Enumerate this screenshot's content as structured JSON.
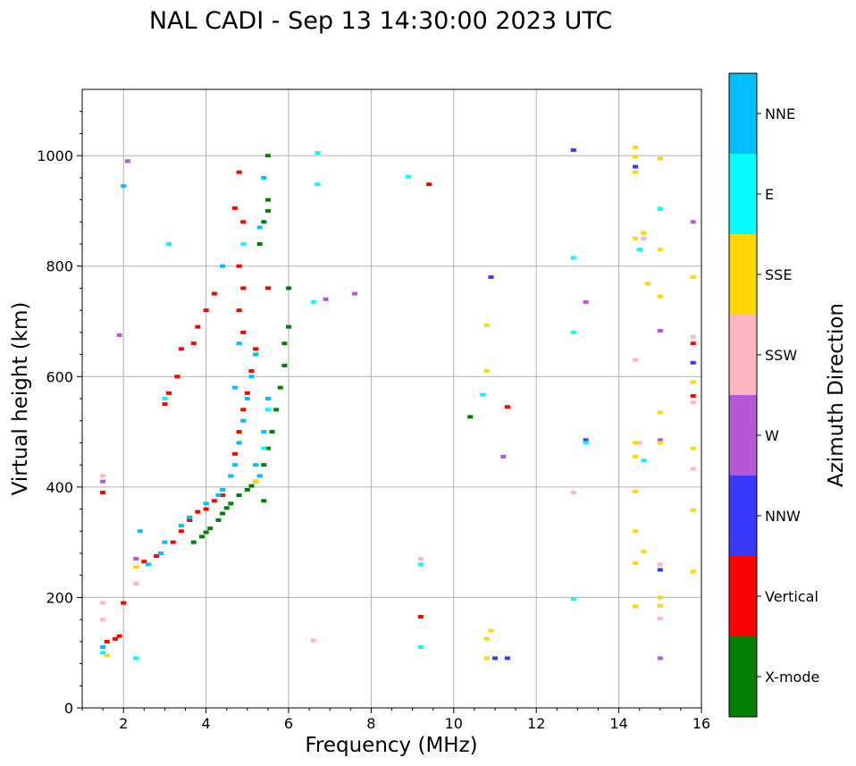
{
  "chart_data": {
    "type": "scatter",
    "title": "NAL CADI - Sep 13 14:30:00 2023 UTC",
    "xlabel": "Frequency (MHz)",
    "ylabel": "Virtual height (km)",
    "xlim": [
      1,
      16
    ],
    "ylim": [
      0,
      1120
    ],
    "xticks": [
      2,
      4,
      6,
      8,
      10,
      12,
      14,
      16
    ],
    "yticks": [
      0,
      200,
      400,
      600,
      800,
      1000
    ],
    "grid": true,
    "colorbar": {
      "title": "Azimuth Direction",
      "categories": [
        {
          "name": "X-mode",
          "color": "#008000"
        },
        {
          "name": "Vertical",
          "color": "#ff0000"
        },
        {
          "name": "NNW",
          "color": "#3a3aff"
        },
        {
          "name": "W",
          "color": "#b657d6"
        },
        {
          "name": "SSW",
          "color": "#ffb6c1"
        },
        {
          "name": "SSE",
          "color": "#ffd700"
        },
        {
          "name": "E",
          "color": "#00ffff"
        },
        {
          "name": "NNE",
          "color": "#00bfff"
        }
      ]
    },
    "series": [
      {
        "name": "X-mode",
        "points": [
          [
            3.7,
            300
          ],
          [
            3.9,
            310
          ],
          [
            4.0,
            318
          ],
          [
            4.1,
            325
          ],
          [
            4.3,
            340
          ],
          [
            4.4,
            352
          ],
          [
            4.5,
            362
          ],
          [
            4.6,
            370
          ],
          [
            4.8,
            385
          ],
          [
            5.0,
            395
          ],
          [
            5.1,
            402
          ],
          [
            5.2,
            410
          ],
          [
            5.3,
            420
          ],
          [
            5.4,
            440
          ],
          [
            5.5,
            470
          ],
          [
            5.6,
            500
          ],
          [
            5.7,
            540
          ],
          [
            5.8,
            580
          ],
          [
            5.9,
            620
          ],
          [
            5.9,
            660
          ],
          [
            6.0,
            690
          ],
          [
            6.0,
            760
          ],
          [
            5.5,
            900
          ],
          [
            5.5,
            920
          ],
          [
            5.4,
            880
          ],
          [
            5.3,
            840
          ],
          [
            5.5,
            1000
          ],
          [
            10.4,
            527
          ],
          [
            5.4,
            375
          ]
        ]
      },
      {
        "name": "Vertical",
        "points": [
          [
            1.6,
            120
          ],
          [
            1.8,
            125
          ],
          [
            1.9,
            130
          ],
          [
            2.0,
            190
          ],
          [
            2.5,
            265
          ],
          [
            2.8,
            275
          ],
          [
            3.2,
            300
          ],
          [
            3.4,
            320
          ],
          [
            3.6,
            340
          ],
          [
            3.8,
            355
          ],
          [
            4.0,
            360
          ],
          [
            4.2,
            375
          ],
          [
            4.4,
            385
          ],
          [
            4.6,
            420
          ],
          [
            4.7,
            460
          ],
          [
            4.8,
            500
          ],
          [
            4.9,
            540
          ],
          [
            5.0,
            570
          ],
          [
            5.1,
            610
          ],
          [
            5.2,
            650
          ],
          [
            4.9,
            680
          ],
          [
            4.8,
            720
          ],
          [
            4.9,
            760
          ],
          [
            4.8,
            800
          ],
          [
            4.9,
            880
          ],
          [
            4.8,
            970
          ],
          [
            4.7,
            905
          ],
          [
            4.2,
            750
          ],
          [
            4.0,
            720
          ],
          [
            3.8,
            690
          ],
          [
            3.7,
            660
          ],
          [
            3.4,
            650
          ],
          [
            3.3,
            600
          ],
          [
            3.1,
            570
          ],
          [
            3.0,
            550
          ],
          [
            1.5,
            390
          ],
          [
            5.5,
            760
          ],
          [
            9.2,
            165
          ],
          [
            9.4,
            948
          ],
          [
            11.3,
            545
          ],
          [
            15.8,
            565
          ],
          [
            15.8,
            660
          ]
        ]
      },
      {
        "name": "NNW",
        "points": [
          [
            11.0,
            90
          ],
          [
            11.3,
            90
          ],
          [
            10.9,
            780
          ],
          [
            12.9,
            1010
          ],
          [
            13.2,
            485
          ],
          [
            14.4,
            980
          ],
          [
            15.8,
            625
          ],
          [
            15.0,
            250
          ]
        ]
      },
      {
        "name": "W",
        "points": [
          [
            1.5,
            410
          ],
          [
            2.1,
            990
          ],
          [
            1.9,
            675
          ],
          [
            6.9,
            740
          ],
          [
            7.6,
            750
          ],
          [
            11.2,
            455
          ],
          [
            13.2,
            735
          ],
          [
            15.0,
            683
          ],
          [
            15.0,
            485
          ],
          [
            15.0,
            90
          ],
          [
            15.8,
            880
          ],
          [
            2.3,
            270
          ]
        ]
      },
      {
        "name": "SSW",
        "points": [
          [
            1.5,
            420
          ],
          [
            1.5,
            160
          ],
          [
            1.5,
            190
          ],
          [
            6.6,
            122
          ],
          [
            9.2,
            270
          ],
          [
            12.9,
            390
          ],
          [
            14.4,
            630
          ],
          [
            14.5,
            480
          ],
          [
            14.6,
            850
          ],
          [
            15.0,
            260
          ],
          [
            15.0,
            162
          ],
          [
            15.8,
            433
          ],
          [
            15.8,
            553
          ],
          [
            15.8,
            672
          ],
          [
            2.3,
            225
          ]
        ]
      },
      {
        "name": "SSE",
        "points": [
          [
            1.6,
            95
          ],
          [
            2.3,
            255
          ],
          [
            10.8,
            90
          ],
          [
            10.8,
            125
          ],
          [
            10.9,
            140
          ],
          [
            10.8,
            610
          ],
          [
            10.8,
            693
          ],
          [
            14.4,
            1015
          ],
          [
            14.4,
            998
          ],
          [
            14.4,
            970
          ],
          [
            14.4,
            850
          ],
          [
            14.6,
            860
          ],
          [
            14.7,
            768
          ],
          [
            15.0,
            745
          ],
          [
            15.0,
            535
          ],
          [
            15.0,
            480
          ],
          [
            15.0,
            200
          ],
          [
            15.0,
            185
          ],
          [
            14.4,
            480
          ],
          [
            14.4,
            455
          ],
          [
            14.4,
            392
          ],
          [
            14.4,
            320
          ],
          [
            14.4,
            262
          ],
          [
            14.6,
            283
          ],
          [
            14.4,
            184
          ],
          [
            15.0,
            905
          ],
          [
            15.0,
            995
          ],
          [
            15.0,
            830
          ],
          [
            15.8,
            780
          ],
          [
            15.8,
            590
          ],
          [
            15.8,
            470
          ],
          [
            15.8,
            358
          ],
          [
            15.8,
            247
          ],
          [
            5.2,
            410
          ]
        ]
      },
      {
        "name": "E",
        "points": [
          [
            1.5,
            100
          ],
          [
            2.3,
            90
          ],
          [
            3.1,
            840
          ],
          [
            6.7,
            1005
          ],
          [
            6.7,
            948
          ],
          [
            6.6,
            735
          ],
          [
            8.9,
            962
          ],
          [
            9.2,
            260
          ],
          [
            9.2,
            110
          ],
          [
            10.7,
            567
          ],
          [
            12.9,
            815
          ],
          [
            12.9,
            680
          ],
          [
            12.9,
            197
          ],
          [
            13.2,
            480
          ],
          [
            14.5,
            830
          ],
          [
            14.6,
            448
          ],
          [
            15.0,
            903
          ],
          [
            4.9,
            840
          ],
          [
            5.4,
            470
          ],
          [
            5.5,
            540
          ],
          [
            3.0,
            560
          ]
        ]
      },
      {
        "name": "NNE",
        "points": [
          [
            1.5,
            110
          ],
          [
            2.0,
            945
          ],
          [
            2.4,
            320
          ],
          [
            2.6,
            260
          ],
          [
            2.9,
            280
          ],
          [
            3.0,
            300
          ],
          [
            3.4,
            330
          ],
          [
            3.6,
            345
          ],
          [
            4.0,
            370
          ],
          [
            4.3,
            385
          ],
          [
            4.4,
            395
          ],
          [
            4.6,
            420
          ],
          [
            4.7,
            440
          ],
          [
            4.8,
            480
          ],
          [
            4.9,
            520
          ],
          [
            5.0,
            560
          ],
          [
            5.1,
            600
          ],
          [
            5.2,
            640
          ],
          [
            4.7,
            580
          ],
          [
            4.8,
            660
          ],
          [
            4.4,
            800
          ],
          [
            5.3,
            420
          ],
          [
            5.4,
            500
          ],
          [
            5.5,
            560
          ],
          [
            5.2,
            440
          ],
          [
            5.3,
            870
          ],
          [
            5.4,
            960
          ]
        ]
      }
    ]
  }
}
